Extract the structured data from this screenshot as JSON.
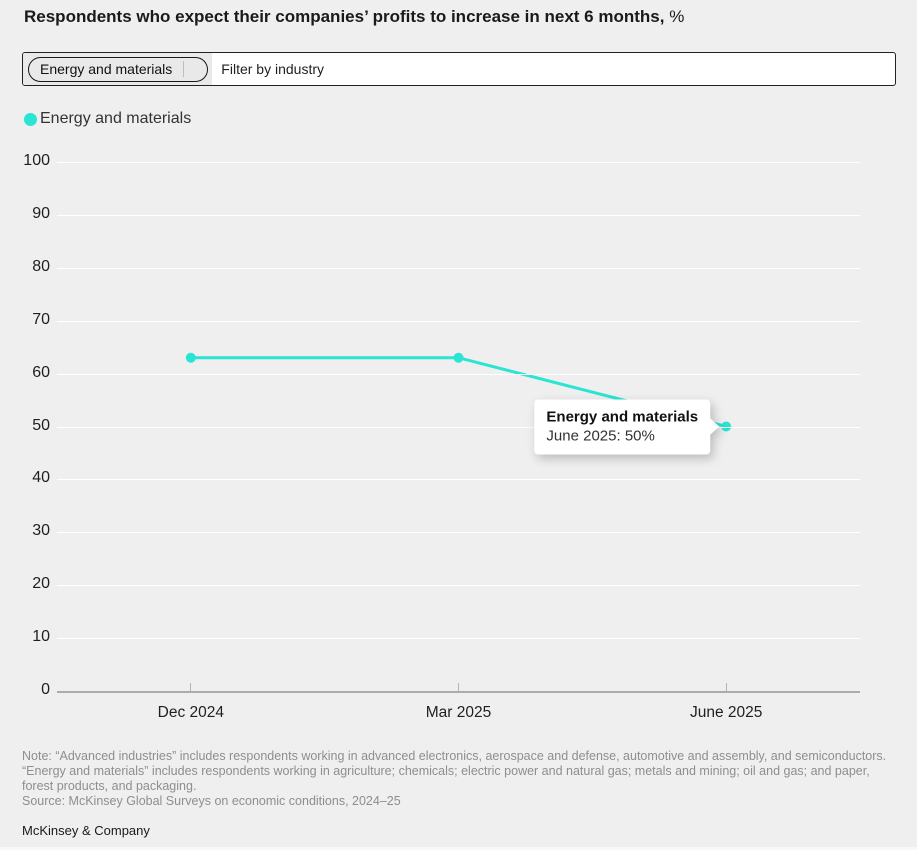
{
  "title": {
    "main": "Respondents who expect their companies’ profits to increase in next 6 months,",
    "suffix": " %"
  },
  "filter": {
    "chip_label": "Energy and materials",
    "placeholder": "Filter by industry"
  },
  "legend": [
    {
      "label": "Energy and materials",
      "color": "#2AE4D4"
    }
  ],
  "chart_data": {
    "type": "line",
    "title": "Respondents who expect their companies’ profits to increase in next 6 months, %",
    "categories": [
      "Dec 2024",
      "Mar 2025",
      "June 2025"
    ],
    "series": [
      {
        "name": "Energy and materials",
        "color": "#2AE4D4",
        "values": [
          63,
          63,
          50
        ]
      }
    ],
    "ylim": [
      0,
      100
    ],
    "ytick_step": 10,
    "grid": true,
    "legend_position": "top-left",
    "xlabel": "",
    "ylabel": ""
  },
  "tooltip": {
    "title": "Energy and materials",
    "value_line": "June 2025: 50%"
  },
  "footer": {
    "note": "Note: “Advanced industries” includes respondents working in advanced electronics, aerospace and defense, automotive and assembly, and semiconductors. “Energy and materials” includes respondents working in agriculture; chemicals; electric power and natural gas; metals and mining; oil and gas; and paper, forest products, and packaging.",
    "source": "Source: McKinsey Global Surveys on economic conditions, 2024–25",
    "brand": "McKinsey & Company"
  },
  "colors": {
    "background": "#efefef",
    "gridline": "#ffffff",
    "axis": "#ababab",
    "accent_teal": "#2AE4D4",
    "note_gray": "#8e8e8e"
  }
}
